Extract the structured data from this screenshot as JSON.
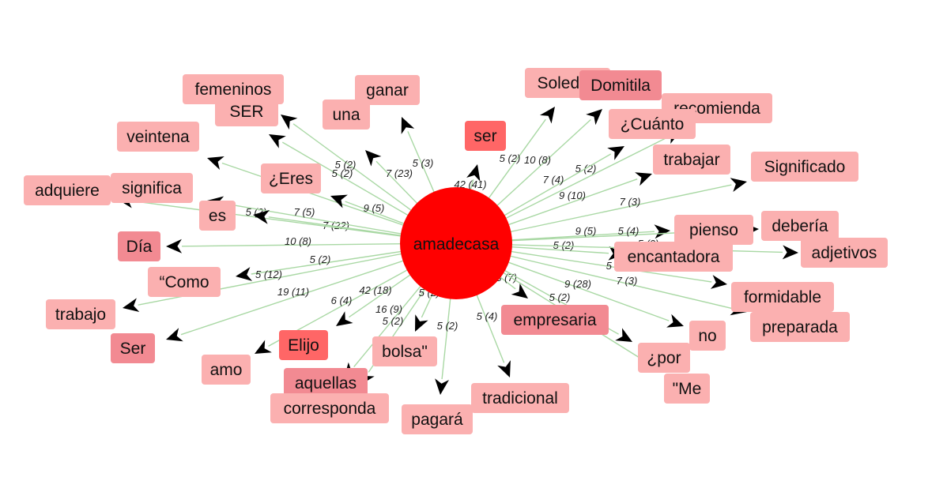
{
  "diagram": {
    "center": {
      "id": "amadecasa",
      "label": "amadecasa",
      "color": "#ff0000"
    },
    "colors": {
      "light": "#fbb0b0",
      "medium": "#f28a92",
      "strong": "#ff6666",
      "edge": "#a9d8a4",
      "arrow": "#000000"
    },
    "nodes": [
      {
        "id": "femeninos",
        "label": "femeninos",
        "shade": "light"
      },
      {
        "id": "SER",
        "label": "SER",
        "shade": "light"
      },
      {
        "id": "una",
        "label": "una",
        "shade": "light"
      },
      {
        "id": "ganar",
        "label": "ganar",
        "shade": "light"
      },
      {
        "id": "veintena",
        "label": "veintena",
        "shade": "light"
      },
      {
        "id": "Eres",
        "label": "¿Eres",
        "shade": "light"
      },
      {
        "id": "adquiere",
        "label": "adquiere",
        "shade": "light"
      },
      {
        "id": "significa",
        "label": "significa",
        "shade": "light"
      },
      {
        "id": "es",
        "label": "es",
        "shade": "light"
      },
      {
        "id": "Dia",
        "label": "Día",
        "shade": "medium"
      },
      {
        "id": "Como",
        "label": "“Como",
        "shade": "light"
      },
      {
        "id": "trabajo",
        "label": "trabajo",
        "shade": "light"
      },
      {
        "id": "Ser2",
        "label": "Ser",
        "shade": "medium"
      },
      {
        "id": "amo",
        "label": "amo",
        "shade": "light"
      },
      {
        "id": "Elijo",
        "label": "Elijo",
        "shade": "strong"
      },
      {
        "id": "aquellas",
        "label": "aquellas",
        "shade": "medium"
      },
      {
        "id": "corresponda",
        "label": "corresponda",
        "shade": "light"
      },
      {
        "id": "bolsa",
        "label": "bolsa\"",
        "shade": "light"
      },
      {
        "id": "pagara",
        "label": "pagará",
        "shade": "light"
      },
      {
        "id": "tradicional",
        "label": "tradicional",
        "shade": "light"
      },
      {
        "id": "ser",
        "label": "ser",
        "shade": "strong"
      },
      {
        "id": "Soledad",
        "label": "Soledad",
        "shade": "light"
      },
      {
        "id": "Domitila",
        "label": "Domitila",
        "shade": "medium"
      },
      {
        "id": "recomienda",
        "label": "recomienda",
        "shade": "light"
      },
      {
        "id": "Cuanto",
        "label": "¿Cuánto",
        "shade": "light"
      },
      {
        "id": "trabajar",
        "label": "trabajar",
        "shade": "light"
      },
      {
        "id": "Significado",
        "label": "Significado",
        "shade": "light"
      },
      {
        "id": "pienso",
        "label": "pienso",
        "shade": "light"
      },
      {
        "id": "deberia",
        "label": "debería",
        "shade": "light"
      },
      {
        "id": "encantadora",
        "label": "encantadora",
        "shade": "light"
      },
      {
        "id": "adjetivos",
        "label": "adjetivos",
        "shade": "light"
      },
      {
        "id": "formidable",
        "label": "formidable",
        "shade": "light"
      },
      {
        "id": "preparada",
        "label": "preparada",
        "shade": "light"
      },
      {
        "id": "no",
        "label": "no",
        "shade": "light"
      },
      {
        "id": "empresaria",
        "label": "empresaria",
        "shade": "medium"
      },
      {
        "id": "por",
        "label": "¿por",
        "shade": "light"
      },
      {
        "id": "Me",
        "label": "\"Me",
        "shade": "light"
      }
    ],
    "edges": [
      {
        "to": "femeninos",
        "label": "5 (2)"
      },
      {
        "to": "SER",
        "label": "5 (2)"
      },
      {
        "to": "una",
        "label": "7 (23)"
      },
      {
        "to": "ganar",
        "label": "5 (3)"
      },
      {
        "to": "veintena",
        "label": "7 (22)"
      },
      {
        "to": "Eres",
        "label": "9 (5)"
      },
      {
        "to": "adquiere",
        "label": "5 (2)"
      },
      {
        "to": "significa",
        "label": "7 (5)"
      },
      {
        "to": "es",
        "label": "5 (2)"
      },
      {
        "to": "Dia",
        "label": "10 (8)"
      },
      {
        "to": "Como",
        "label": "5 (2)"
      },
      {
        "to": "trabajo",
        "label": "5 (12)"
      },
      {
        "to": "Ser2",
        "label": "19 (11)"
      },
      {
        "to": "amo",
        "label": "6 (4)"
      },
      {
        "to": "Elijo",
        "label": "42 (18)"
      },
      {
        "to": "aquellas",
        "label": "16 (9)"
      },
      {
        "to": "corresponda",
        "label": "5 (2)"
      },
      {
        "to": "bolsa",
        "label": "5 (2)"
      },
      {
        "to": "pagara",
        "label": "5 (2)"
      },
      {
        "to": "tradicional",
        "label": "5 (4)"
      },
      {
        "to": "ser",
        "label": "42 (41)"
      },
      {
        "to": "Soledad",
        "label": "5 (2)"
      },
      {
        "to": "Domitila",
        "label": "10 (8)"
      },
      {
        "to": "recomienda",
        "label": "5 (2)"
      },
      {
        "to": "Cuanto",
        "label": "7 (4)"
      },
      {
        "to": "trabajar",
        "label": "9 (10)"
      },
      {
        "to": "Significado",
        "label": "7 (3)"
      },
      {
        "to": "pienso",
        "label": "9 (5)"
      },
      {
        "to": "deberia",
        "label": "5 (4)"
      },
      {
        "to": "encantadora",
        "label": "5 (2)"
      },
      {
        "to": "adjetivos",
        "label": "5 (2)"
      },
      {
        "to": "formidable",
        "label": "5 (2)"
      },
      {
        "to": "preparada",
        "label": "7 (3)"
      },
      {
        "to": "no",
        "label": "9 (28)"
      },
      {
        "to": "empresaria",
        "label": "13 (7)"
      },
      {
        "to": "por",
        "label": "5 (2)"
      },
      {
        "to": "Me",
        "label": "5 (2)"
      }
    ]
  }
}
